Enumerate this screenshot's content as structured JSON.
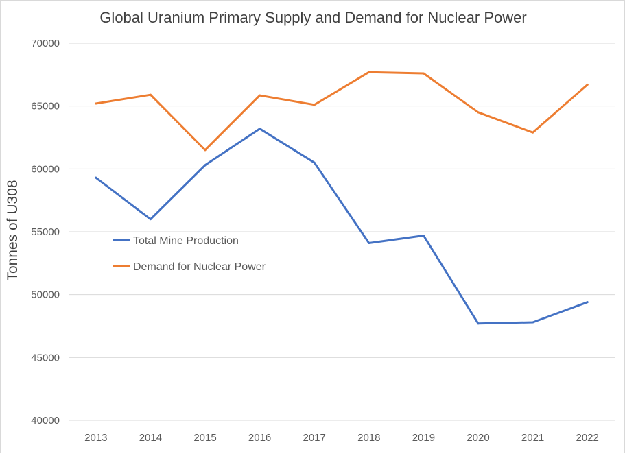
{
  "chart_data": {
    "type": "line",
    "title": "Global Uranium Primary Supply and Demand for Nuclear Power",
    "xlabel": "",
    "ylabel": "Tonnes of U308",
    "ylim": [
      40000,
      70000
    ],
    "yticks": [
      "40000",
      "45000",
      "50000",
      "55000",
      "60000",
      "65000",
      "70000"
    ],
    "categories": [
      "2013",
      "2014",
      "2015",
      "2016",
      "2017",
      "2018",
      "2019",
      "2020",
      "2021",
      "2022"
    ],
    "grid": true,
    "legend_position": "left-center inside plot",
    "series": [
      {
        "name": "Total Mine Production",
        "color": "#4472c4",
        "values": [
          59300,
          56000,
          60300,
          63200,
          60500,
          54100,
          54700,
          47700,
          47800,
          49400
        ]
      },
      {
        "name": "Demand for Nuclear Power",
        "color": "#ed7d31",
        "values": [
          65200,
          65900,
          61500,
          65850,
          65100,
          67700,
          67600,
          64500,
          62900,
          66700
        ]
      }
    ]
  }
}
